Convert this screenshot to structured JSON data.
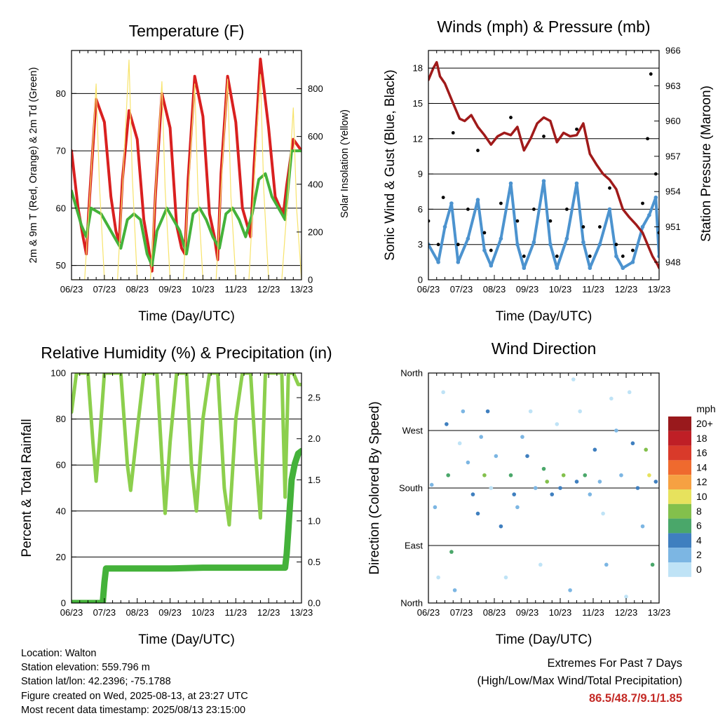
{
  "x_ticks": [
    "06/23",
    "07/23",
    "08/23",
    "09/23",
    "10/23",
    "11/23",
    "12/23",
    "13/23"
  ],
  "colors": {
    "temp_2m": "#d92020",
    "temp_9m": "#f26a1b",
    "dewpoint": "#44b23a",
    "solar": "#f7e36b",
    "wind": "#4c93cf",
    "gust": "#000000",
    "pressure": "#a01a1a",
    "rh": "#8ccf4d",
    "precip": "#44b23a"
  },
  "chart_data": [
    {
      "id": "temperature",
      "type": "line",
      "title": "Temperature (F)",
      "xlabel": "Time (Day/UTC)",
      "ylabel": "2m & 9m T (Red, Orange) & 2m Td (Green)",
      "ylabel_right": "Solar Insolation (Yellow)",
      "xlim": [
        0,
        7
      ],
      "ylim": [
        47.5,
        87.5
      ],
      "ylim_right": [
        0,
        960
      ],
      "yticks": [
        50,
        60,
        70,
        80
      ],
      "yticks_right": [
        0,
        200,
        400,
        600,
        800
      ],
      "series": [
        {
          "key": "temp_2m",
          "axis": "left",
          "x": [
            0,
            0.2,
            0.35,
            0.45,
            0.55,
            0.75,
            1.0,
            1.2,
            1.35,
            1.45,
            1.55,
            1.75,
            2.0,
            2.2,
            2.35,
            2.45,
            2.55,
            2.75,
            3.0,
            3.2,
            3.35,
            3.45,
            3.55,
            3.75,
            4.0,
            4.2,
            4.35,
            4.45,
            4.55,
            4.75,
            5.0,
            5.2,
            5.35,
            5.45,
            5.55,
            5.75,
            6.0,
            6.2,
            6.35,
            6.45,
            6.55,
            6.75,
            7.0
          ],
          "y": [
            70,
            60,
            55,
            52,
            62,
            79,
            75,
            62,
            56,
            54,
            65,
            77,
            72,
            58,
            53,
            49,
            62,
            80,
            74,
            57,
            53,
            52,
            65,
            83,
            76,
            59,
            55,
            51,
            66,
            83,
            75,
            60,
            57,
            55,
            67,
            86,
            74,
            62,
            60,
            59,
            64,
            72,
            70
          ]
        },
        {
          "key": "dewpoint",
          "axis": "left",
          "x": [
            0,
            0.15,
            0.3,
            0.45,
            0.6,
            0.9,
            1.1,
            1.3,
            1.5,
            1.7,
            1.9,
            2.1,
            2.3,
            2.45,
            2.6,
            2.9,
            3.1,
            3.3,
            3.5,
            3.7,
            3.9,
            4.1,
            4.3,
            4.5,
            4.7,
            4.9,
            5.1,
            5.3,
            5.5,
            5.7,
            5.9,
            6.1,
            6.3,
            6.5,
            6.7,
            7.0
          ],
          "y": [
            63,
            60,
            57,
            55,
            60,
            59,
            57,
            55,
            53,
            58,
            59,
            58,
            52,
            50,
            56,
            60,
            58,
            56,
            52,
            59,
            60,
            58,
            55,
            53,
            59,
            60,
            58,
            55,
            59,
            65,
            66,
            62,
            60,
            58,
            70,
            70
          ]
        },
        {
          "key": "solar",
          "axis": "right",
          "x": [
            0.0,
            0.4,
            0.6,
            0.75,
            0.85,
            1.0,
            1.4,
            1.6,
            1.75,
            1.85,
            2.0,
            2.4,
            2.6,
            2.75,
            2.85,
            3.0,
            3.4,
            3.6,
            3.75,
            3.85,
            4.0,
            4.4,
            4.6,
            4.75,
            4.85,
            5.0,
            5.4,
            5.6,
            5.75,
            5.85,
            6.0,
            6.4,
            6.6,
            6.75,
            6.85,
            7.0
          ],
          "y": [
            0,
            0,
            450,
            820,
            400,
            0,
            0,
            520,
            920,
            430,
            0,
            0,
            470,
            830,
            380,
            0,
            0,
            480,
            820,
            360,
            0,
            0,
            500,
            840,
            350,
            0,
            0,
            520,
            860,
            380,
            0,
            0,
            380,
            720,
            300,
            0
          ]
        }
      ]
    },
    {
      "id": "winds",
      "type": "scatter",
      "title": "Winds (mph) & Pressure (mb)",
      "xlabel": "Time (Day/UTC)",
      "ylabel": "Sonic Wind & Gust (Blue, Black)",
      "ylabel_right": "Station Pressure (Maroon)",
      "xlim": [
        0,
        7
      ],
      "ylim": [
        0,
        19.5
      ],
      "ylim_right": [
        946.5,
        966
      ],
      "yticks": [
        0,
        3,
        6,
        9,
        12,
        15,
        18
      ],
      "yticks_right": [
        948,
        951,
        954,
        957,
        960,
        963,
        966
      ],
      "series": [
        {
          "key": "wind",
          "axis": "left",
          "x": [
            0,
            0.3,
            0.5,
            0.7,
            0.9,
            1.2,
            1.5,
            1.7,
            1.9,
            2.2,
            2.5,
            2.7,
            2.9,
            3.2,
            3.5,
            3.7,
            3.9,
            4.2,
            4.5,
            4.7,
            4.9,
            5.2,
            5.5,
            5.7,
            5.9,
            6.2,
            6.5,
            6.7,
            6.9,
            7.0
          ],
          "y": [
            3,
            1.5,
            4.5,
            6.5,
            1.5,
            3.5,
            6.8,
            2.5,
            1.2,
            3.5,
            8.2,
            3,
            1,
            3.2,
            8.4,
            3,
            1,
            3.5,
            8.2,
            3.2,
            1,
            3,
            6,
            2,
            1,
            1.5,
            4.5,
            5.5,
            7,
            2
          ]
        },
        {
          "key": "gust",
          "axis": "left",
          "x": [
            0,
            0.3,
            0.45,
            0.75,
            0.9,
            1.2,
            1.5,
            1.7,
            1.9,
            2.2,
            2.5,
            2.7,
            2.9,
            3.2,
            3.5,
            3.7,
            3.9,
            4.2,
            4.5,
            4.7,
            4.9,
            5.2,
            5.5,
            5.7,
            5.9,
            6.2,
            6.5,
            6.65,
            6.75,
            6.9,
            7.0
          ],
          "y": [
            5,
            3,
            7,
            12.5,
            3,
            6,
            11,
            4,
            2.5,
            6.5,
            13.8,
            5,
            2,
            6,
            12.2,
            5,
            2,
            6,
            12.8,
            4.5,
            2,
            4.5,
            7.8,
            3,
            2,
            2.5,
            6.5,
            12,
            17.5,
            9,
            4
          ]
        },
        {
          "key": "pressure",
          "axis": "right",
          "x": [
            0,
            0.15,
            0.25,
            0.35,
            0.5,
            0.75,
            0.95,
            1.1,
            1.3,
            1.5,
            1.7,
            1.9,
            2.1,
            2.3,
            2.5,
            2.7,
            2.9,
            3.1,
            3.3,
            3.5,
            3.7,
            3.9,
            4.1,
            4.3,
            4.5,
            4.7,
            4.9,
            5.1,
            5.3,
            5.5,
            5.7,
            5.9,
            6.1,
            6.3,
            6.5,
            6.65,
            6.8,
            6.95,
            7.0
          ],
          "y": [
            963.5,
            964.5,
            965.0,
            963.8,
            963.2,
            961.5,
            960.2,
            960.0,
            960.5,
            959.5,
            958.8,
            958.0,
            958.7,
            959.0,
            958.8,
            959.5,
            957.5,
            958.5,
            959.8,
            960.3,
            960.0,
            958.2,
            959.0,
            958.7,
            958.8,
            959.8,
            957.2,
            956.3,
            955.5,
            955.0,
            954.2,
            952.5,
            951.8,
            951.2,
            950.5,
            949.5,
            948.5,
            947.8,
            947.5
          ]
        }
      ]
    },
    {
      "id": "humidity",
      "type": "line",
      "title": "Relative Humidity (%) & Precipitation (in)",
      "xlabel": "Time (Day/UTC)",
      "ylabel": "Percent & Total Rainfall",
      "xlim": [
        0,
        7
      ],
      "ylim": [
        0,
        100
      ],
      "ylim_right": [
        0,
        2.8
      ],
      "yticks": [
        0,
        20,
        40,
        60,
        80,
        100
      ],
      "yticks_right": [
        0.0,
        0.5,
        1.0,
        1.5,
        2.0,
        2.5
      ],
      "series": [
        {
          "key": "rh",
          "axis": "left",
          "x": [
            0,
            0.15,
            0.3,
            0.5,
            0.65,
            0.75,
            0.85,
            1.0,
            1.1,
            1.3,
            1.5,
            1.7,
            1.8,
            2.0,
            2.2,
            2.4,
            2.6,
            2.75,
            2.85,
            3.0,
            3.2,
            3.5,
            3.65,
            3.8,
            4.0,
            4.2,
            4.45,
            4.65,
            4.8,
            5.0,
            5.2,
            5.45,
            5.6,
            5.75,
            5.9,
            6.1,
            6.25,
            6.4,
            6.5,
            6.6,
            6.75,
            6.9,
            7.0
          ],
          "y": [
            83,
            100,
            100,
            100,
            70,
            53,
            70,
            100,
            100,
            100,
            100,
            60,
            49,
            75,
            100,
            100,
            100,
            62,
            39,
            70,
            100,
            100,
            60,
            40,
            80,
            100,
            100,
            50,
            34,
            80,
            100,
            100,
            65,
            37,
            100,
            100,
            100,
            100,
            46,
            100,
            100,
            95,
            95
          ]
        },
        {
          "key": "precip",
          "axis": "right",
          "x": [
            0,
            0.6,
            0.95,
            1.0,
            1.05,
            1.2,
            2.0,
            3.0,
            4.0,
            5.0,
            6.0,
            6.5,
            6.55,
            6.6,
            6.65,
            6.7,
            6.8,
            6.9,
            7.0
          ],
          "y": [
            0,
            0,
            0,
            0.25,
            0.42,
            0.42,
            0.42,
            0.42,
            0.43,
            0.43,
            0.43,
            0.43,
            0.6,
            0.9,
            1.2,
            1.5,
            1.7,
            1.82,
            1.85
          ]
        }
      ]
    },
    {
      "id": "wind_direction",
      "type": "scatter",
      "title": "Wind Direction",
      "xlabel": "Time (Day/UTC)",
      "ylabel": "Direction (Colored By Speed)",
      "xlim": [
        0,
        7
      ],
      "ylim": [
        0,
        360
      ],
      "yticks": [
        0,
        90,
        180,
        270,
        360
      ],
      "ytick_labels": [
        "North",
        "East",
        "South",
        "West",
        "North"
      ],
      "colorbar": {
        "label": "mph",
        "levels": [
          "20+",
          "18",
          "16",
          "14",
          "12",
          "10",
          "8",
          "6",
          "4",
          "2",
          "0"
        ],
        "colors": [
          "#99191c",
          "#bf1f26",
          "#d93a2a",
          "#ef6a2e",
          "#f6a142",
          "#e7e25d",
          "#83c04c",
          "#4aa76a",
          "#3f7fbf",
          "#7cb6e3",
          "#bfe3f6"
        ]
      },
      "series": [
        {
          "key": "wind_direction",
          "x": [
            0.1,
            0.2,
            0.3,
            0.45,
            0.55,
            0.6,
            0.7,
            0.8,
            0.95,
            1.05,
            1.2,
            1.35,
            1.5,
            1.6,
            1.7,
            1.8,
            1.9,
            2.05,
            2.2,
            2.35,
            2.5,
            2.6,
            2.7,
            2.85,
            3.0,
            3.1,
            3.25,
            3.4,
            3.5,
            3.6,
            3.75,
            3.9,
            4.0,
            4.1,
            4.3,
            4.4,
            4.5,
            4.6,
            4.75,
            4.9,
            5.05,
            5.2,
            5.3,
            5.4,
            5.55,
            5.7,
            5.85,
            6.0,
            6.1,
            6.2,
            6.35,
            6.5,
            6.6,
            6.7,
            6.8,
            6.9
          ],
          "y": [
            185,
            150,
            40,
            330,
            280,
            200,
            80,
            20,
            250,
            300,
            220,
            170,
            140,
            260,
            200,
            300,
            180,
            230,
            120,
            40,
            200,
            170,
            150,
            260,
            230,
            300,
            180,
            60,
            210,
            190,
            170,
            280,
            180,
            200,
            20,
            350,
            190,
            300,
            200,
            170,
            240,
            190,
            140,
            60,
            320,
            270,
            200,
            10,
            330,
            250,
            180,
            120,
            240,
            200,
            60,
            190
          ],
          "speed": [
            2,
            1,
            0,
            0,
            3,
            5,
            6,
            1,
            0,
            1,
            2,
            3,
            3,
            2,
            7,
            4,
            0,
            1,
            3,
            0,
            5,
            4,
            2,
            1,
            3,
            0,
            1,
            0,
            5,
            7,
            3,
            0,
            3,
            7,
            1,
            0,
            4,
            0,
            6,
            2,
            3,
            1,
            0,
            1,
            0,
            2,
            1,
            0,
            0,
            4,
            3,
            1,
            8,
            9,
            5,
            3
          ]
        }
      ]
    }
  ],
  "info": {
    "location": "Location: Walton",
    "elevation": "Station elevation: 559.796 m",
    "latlon": "Station lat/lon: 42.2396; -75.1788",
    "created": "Figure created on Wed, 2025-08-13, at 23:27 UTC",
    "latest": "Most recent data timestamp: 2025/08/13 23:15:00"
  },
  "extremes": {
    "title": "Extremes For Past 7 Days",
    "subtitle": "(High/Low/Max Wind/Total Precipitation)",
    "values": "86.5/48.7/9.1/1.85"
  }
}
